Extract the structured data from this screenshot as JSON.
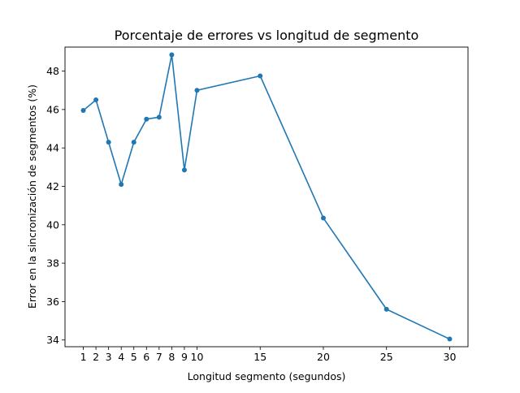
{
  "chart_data": {
    "type": "line",
    "title": "Porcentaje de errores vs longitud de segmento",
    "xlabel": "Longitud segmento (segundos)",
    "ylabel": "Error en la sincronización de segmentos (%)",
    "x": [
      1,
      2,
      3,
      4,
      5,
      6,
      7,
      8,
      9,
      10,
      15,
      20,
      25,
      30
    ],
    "series": [
      {
        "values": [
          45.95,
          46.5,
          44.3,
          42.1,
          44.3,
          45.5,
          45.6,
          48.85,
          42.85,
          47.0,
          47.75,
          40.35,
          35.6,
          34.05
        ],
        "color": "#1f77b4"
      }
    ],
    "xticks": [
      1,
      2,
      3,
      4,
      5,
      6,
      7,
      8,
      9,
      10,
      15,
      20,
      25,
      30
    ],
    "yticks": [
      34,
      36,
      38,
      40,
      42,
      44,
      46,
      48
    ],
    "xlim": [
      -0.45,
      31.45
    ],
    "ylim": [
      33.65,
      49.25
    ],
    "grid": false,
    "markers": true
  }
}
